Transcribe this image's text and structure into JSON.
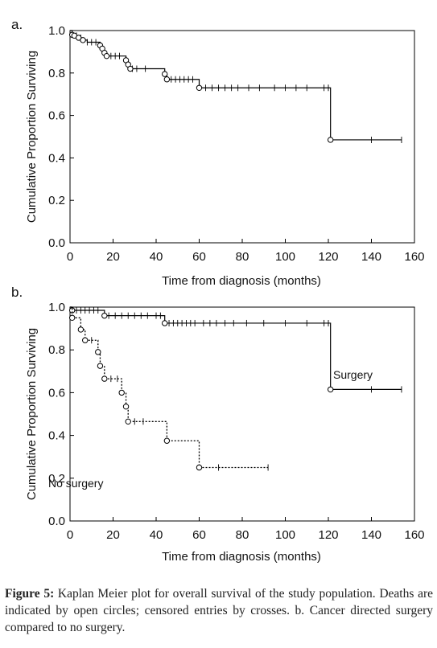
{
  "chart_data": [
    {
      "type": "line",
      "panel_label": "a.",
      "xlabel": "Time from diagnosis (months)",
      "ylabel": "Cumulative Proportion Surviving",
      "xlim": [
        0,
        160
      ],
      "ylim": [
        0,
        1.0
      ],
      "xticks": [
        0,
        20,
        40,
        60,
        80,
        100,
        120,
        140,
        160
      ],
      "yticks": [
        "0.0",
        "0.2",
        "0.4",
        "0.6",
        "0.8",
        "1.0"
      ],
      "series": [
        {
          "line_style": "solid",
          "deaths": [
            [
              1,
              0.98
            ],
            [
              2,
              0.976
            ],
            [
              4,
              0.966
            ],
            [
              6,
              0.955
            ],
            [
              14,
              0.93
            ],
            [
              15,
              0.915
            ],
            [
              16,
              0.895
            ],
            [
              17,
              0.88
            ],
            [
              26,
              0.86
            ],
            [
              27,
              0.84
            ],
            [
              28,
              0.82
            ],
            [
              44,
              0.795
            ],
            [
              45,
              0.77
            ],
            [
              60,
              0.73
            ],
            [
              121,
              0.485
            ]
          ],
          "censored": [
            [
              3,
              0.976
            ],
            [
              5,
              0.966
            ],
            [
              8,
              0.945
            ],
            [
              10,
              0.945
            ],
            [
              12,
              0.945
            ],
            [
              19,
              0.88
            ],
            [
              21,
              0.88
            ],
            [
              23,
              0.88
            ],
            [
              29,
              0.82
            ],
            [
              31,
              0.82
            ],
            [
              35,
              0.82
            ],
            [
              47,
              0.77
            ],
            [
              49,
              0.77
            ],
            [
              51,
              0.77
            ],
            [
              53,
              0.77
            ],
            [
              55,
              0.77
            ],
            [
              57,
              0.77
            ],
            [
              63,
              0.73
            ],
            [
              66,
              0.73
            ],
            [
              69,
              0.73
            ],
            [
              72,
              0.73
            ],
            [
              75,
              0.73
            ],
            [
              78,
              0.73
            ],
            [
              83,
              0.73
            ],
            [
              88,
              0.73
            ],
            [
              95,
              0.73
            ],
            [
              100,
              0.73
            ],
            [
              105,
              0.73
            ],
            [
              110,
              0.73
            ],
            [
              118,
              0.73
            ],
            [
              120,
              0.73
            ],
            [
              140,
              0.485
            ],
            [
              154,
              0.485
            ]
          ]
        }
      ]
    },
    {
      "type": "line",
      "panel_label": "b.",
      "xlabel": "Time from diagnosis (months)",
      "ylabel": "Cumulative Proportion Surviving",
      "xlim": [
        0,
        160
      ],
      "ylim": [
        0,
        1.0
      ],
      "xticks": [
        0,
        20,
        40,
        60,
        80,
        100,
        120,
        140,
        160
      ],
      "yticks": [
        "0.0",
        "0.2",
        "0.4",
        "0.6",
        "0.8",
        "1.0"
      ],
      "series": [
        {
          "name": "Surgery",
          "line_style": "solid",
          "deaths": [
            [
              1,
              0.985
            ],
            [
              16,
              0.96
            ],
            [
              44,
              0.925
            ],
            [
              121,
              0.615
            ]
          ],
          "censored": [
            [
              3,
              0.985
            ],
            [
              5,
              0.985
            ],
            [
              7,
              0.985
            ],
            [
              9,
              0.985
            ],
            [
              11,
              0.985
            ],
            [
              13,
              0.985
            ],
            [
              18,
              0.96
            ],
            [
              21,
              0.96
            ],
            [
              24,
              0.96
            ],
            [
              27,
              0.96
            ],
            [
              30,
              0.96
            ],
            [
              33,
              0.96
            ],
            [
              36,
              0.96
            ],
            [
              40,
              0.96
            ],
            [
              42,
              0.96
            ],
            [
              46,
              0.925
            ],
            [
              48,
              0.925
            ],
            [
              50,
              0.925
            ],
            [
              52,
              0.925
            ],
            [
              54,
              0.925
            ],
            [
              56,
              0.925
            ],
            [
              58,
              0.925
            ],
            [
              62,
              0.925
            ],
            [
              65,
              0.925
            ],
            [
              68,
              0.925
            ],
            [
              72,
              0.925
            ],
            [
              76,
              0.925
            ],
            [
              82,
              0.925
            ],
            [
              90,
              0.925
            ],
            [
              100,
              0.925
            ],
            [
              110,
              0.925
            ],
            [
              118,
              0.925
            ],
            [
              120,
              0.925
            ],
            [
              140,
              0.615
            ],
            [
              154,
              0.615
            ]
          ]
        },
        {
          "name": "No surgery",
          "line_style": "dotted",
          "deaths": [
            [
              1,
              0.95
            ],
            [
              5,
              0.895
            ],
            [
              7,
              0.845
            ],
            [
              13,
              0.79
            ],
            [
              14,
              0.725
            ],
            [
              16,
              0.665
            ],
            [
              24,
              0.6
            ],
            [
              26,
              0.535
            ],
            [
              27,
              0.465
            ],
            [
              45,
              0.375
            ],
            [
              60,
              0.25
            ]
          ],
          "censored": [
            [
              10,
              0.845
            ],
            [
              19,
              0.665
            ],
            [
              22,
              0.665
            ],
            [
              30,
              0.465
            ],
            [
              34,
              0.465
            ],
            [
              69,
              0.25
            ],
            [
              92,
              0.25
            ]
          ]
        }
      ]
    }
  ],
  "caption": {
    "label": "Figure 5:",
    "text": " Kaplan Meier plot for overall survival of the study population. Deaths are indicated by open circles; censored entries by crosses. b. Cancer directed surgery compared to no surgery."
  }
}
